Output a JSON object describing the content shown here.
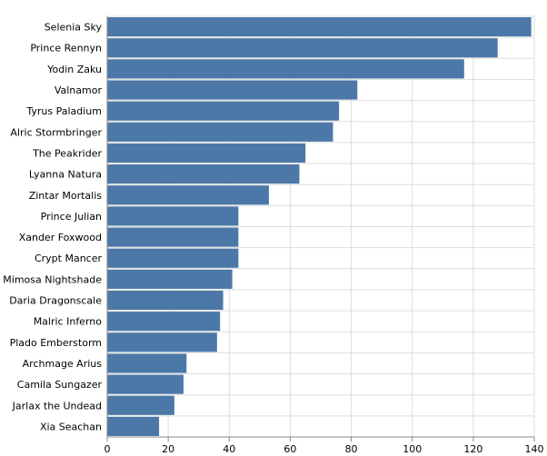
{
  "chart_data": {
    "type": "bar",
    "orientation": "horizontal",
    "title": "",
    "xlabel": "",
    "ylabel": "",
    "xlim": [
      0,
      140
    ],
    "x_ticks": [
      0,
      20,
      40,
      60,
      80,
      100,
      120,
      140
    ],
    "grid": true,
    "bar_color": "#4c78a8",
    "categories": [
      "Selenia Sky",
      "Prince Rennyn",
      "Yodin Zaku",
      "Valnamor",
      "Tyrus Paladium",
      "Alric Stormbringer",
      "The Peakrider",
      "Lyanna Natura",
      "Zintar Mortalis",
      "Prince Julian",
      "Xander Foxwood",
      "Crypt Mancer",
      "Mimosa Nightshade",
      "Daria Dragonscale",
      "Malric Inferno",
      "Plado Emberstorm",
      "Archmage Arius",
      "Camila Sungazer",
      "Jarlax the Undead",
      "Xia Seachan"
    ],
    "values": [
      139,
      128,
      117,
      82,
      76,
      74,
      65,
      63,
      53,
      43,
      43,
      43,
      41,
      38,
      37,
      36,
      26,
      25,
      22,
      17
    ]
  }
}
